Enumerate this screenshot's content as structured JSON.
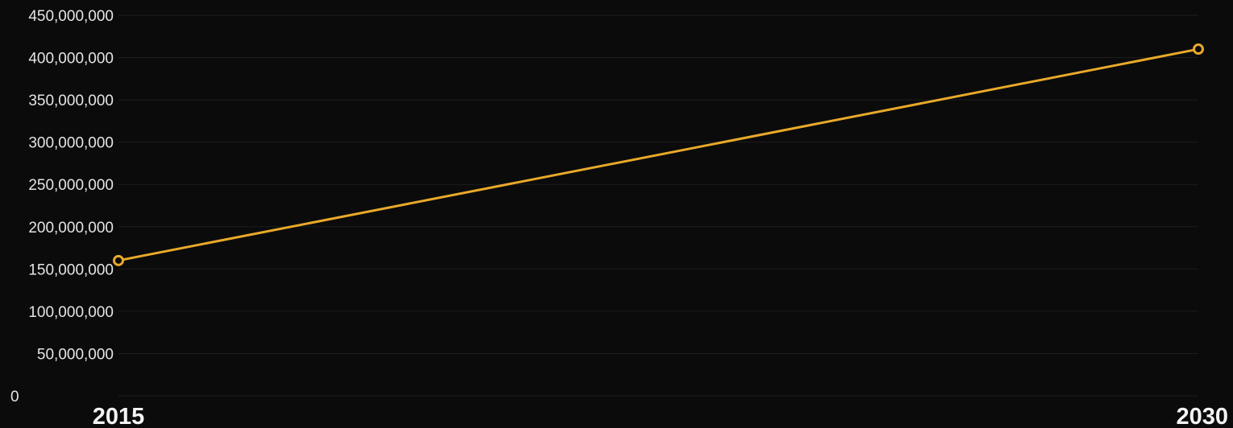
{
  "chart_data": {
    "type": "line",
    "title": "",
    "xlabel": "",
    "ylabel": "",
    "x": [
      "2015",
      "2030"
    ],
    "series": [
      {
        "values": [
          160000000,
          410000000
        ]
      }
    ],
    "ylim": [
      0,
      450000000
    ],
    "yticks": [
      0,
      50000000,
      100000000,
      150000000,
      200000000,
      250000000,
      300000000,
      350000000,
      400000000,
      450000000
    ],
    "ytick_labels": [
      "0",
      "50,000,000",
      "100,000,000",
      "150,000,000",
      "200,000,000",
      "250,000,000",
      "300,000,000",
      "350,000,000",
      "400,000,000",
      "450,000,000"
    ],
    "grid": true,
    "legend": "none",
    "colors": {
      "background": "#0b0b0b",
      "line": "#e9a92a",
      "grid": "#1c1c1c",
      "tick_text": "#e4e4e4"
    }
  }
}
